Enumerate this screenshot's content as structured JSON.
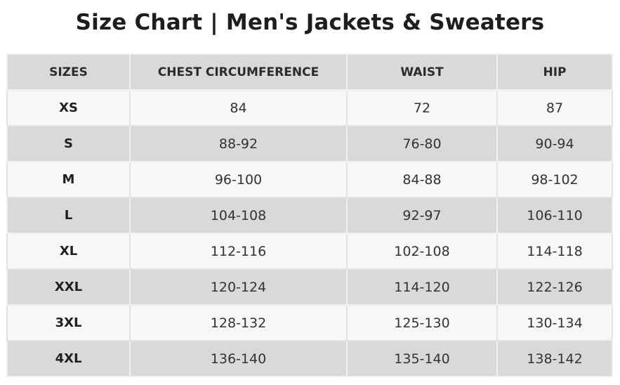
{
  "title": "Size Chart | Men's Jackets & Sweaters",
  "table": {
    "headers": [
      "SIZES",
      "CHEST CIRCUMFERENCE",
      "WAIST",
      "HIP"
    ],
    "rows": [
      [
        "XS",
        "84",
        "72",
        "87"
      ],
      [
        "S",
        "88-92",
        "76-80",
        "90-94"
      ],
      [
        "M",
        "96-100",
        "84-88",
        "98-102"
      ],
      [
        "L",
        "104-108",
        "92-97",
        "106-110"
      ],
      [
        "XL",
        "112-116",
        "102-108",
        "114-118"
      ],
      [
        "XXL",
        "120-124",
        "114-120",
        "122-126"
      ],
      [
        "3XL",
        "128-132",
        "125-130",
        "130-134"
      ],
      [
        "4XL",
        "136-140",
        "135-140",
        "138-142"
      ]
    ]
  },
  "colors": {
    "header_bg": "#d9d9d9",
    "odd_row_bg": "#f7f7f7",
    "even_row_bg": "#d9d9d9",
    "title_text": "#1e1e1e"
  }
}
